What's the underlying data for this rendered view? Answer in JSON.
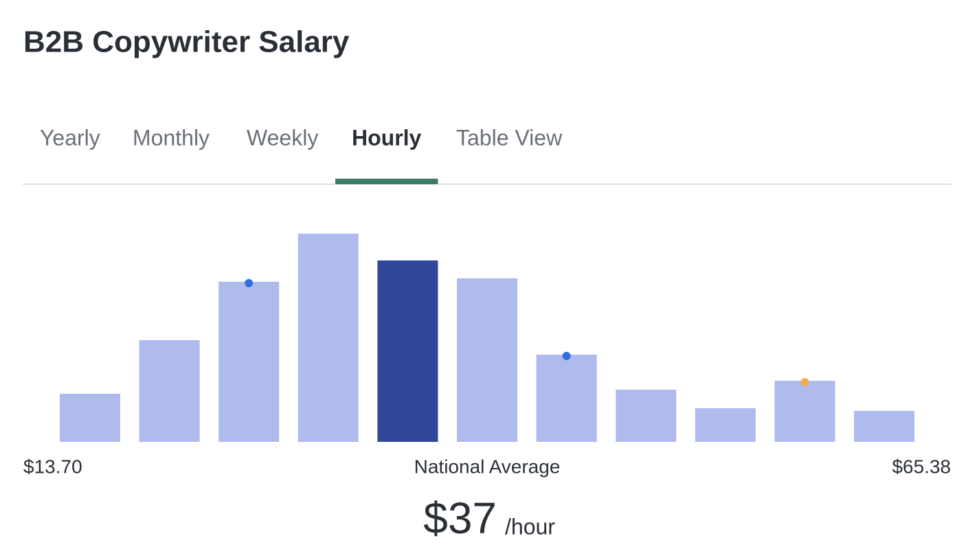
{
  "header": {
    "title": "B2B Copywriter Salary"
  },
  "tabs": {
    "items": [
      "Yearly",
      "Monthly",
      "Weekly",
      "Hourly",
      "Table View"
    ],
    "active": 3,
    "accent_color": "#3c7b64"
  },
  "chart_data": {
    "type": "bar",
    "values": [
      70,
      148,
      233,
      303,
      264,
      238,
      127,
      76,
      49,
      89,
      45
    ],
    "colors": [
      "#aebbec",
      "#aebbec",
      "#aebbec",
      "#aebbec",
      "#2f479b",
      "#aebbec",
      "#aebbec",
      "#aebbec",
      "#aebbec",
      "#aebbec",
      "#aebbec"
    ],
    "markers": [
      {
        "index": 2,
        "color": "#2f6fdf"
      },
      {
        "index": 6,
        "color": "#2f6fdf"
      },
      {
        "index": 9,
        "color": "#f0ad55"
      }
    ]
  },
  "summary": {
    "min_label": "$13.70",
    "center_label": "National Average",
    "max_label": "$65.38",
    "average": "$37",
    "unit": "/hour"
  }
}
